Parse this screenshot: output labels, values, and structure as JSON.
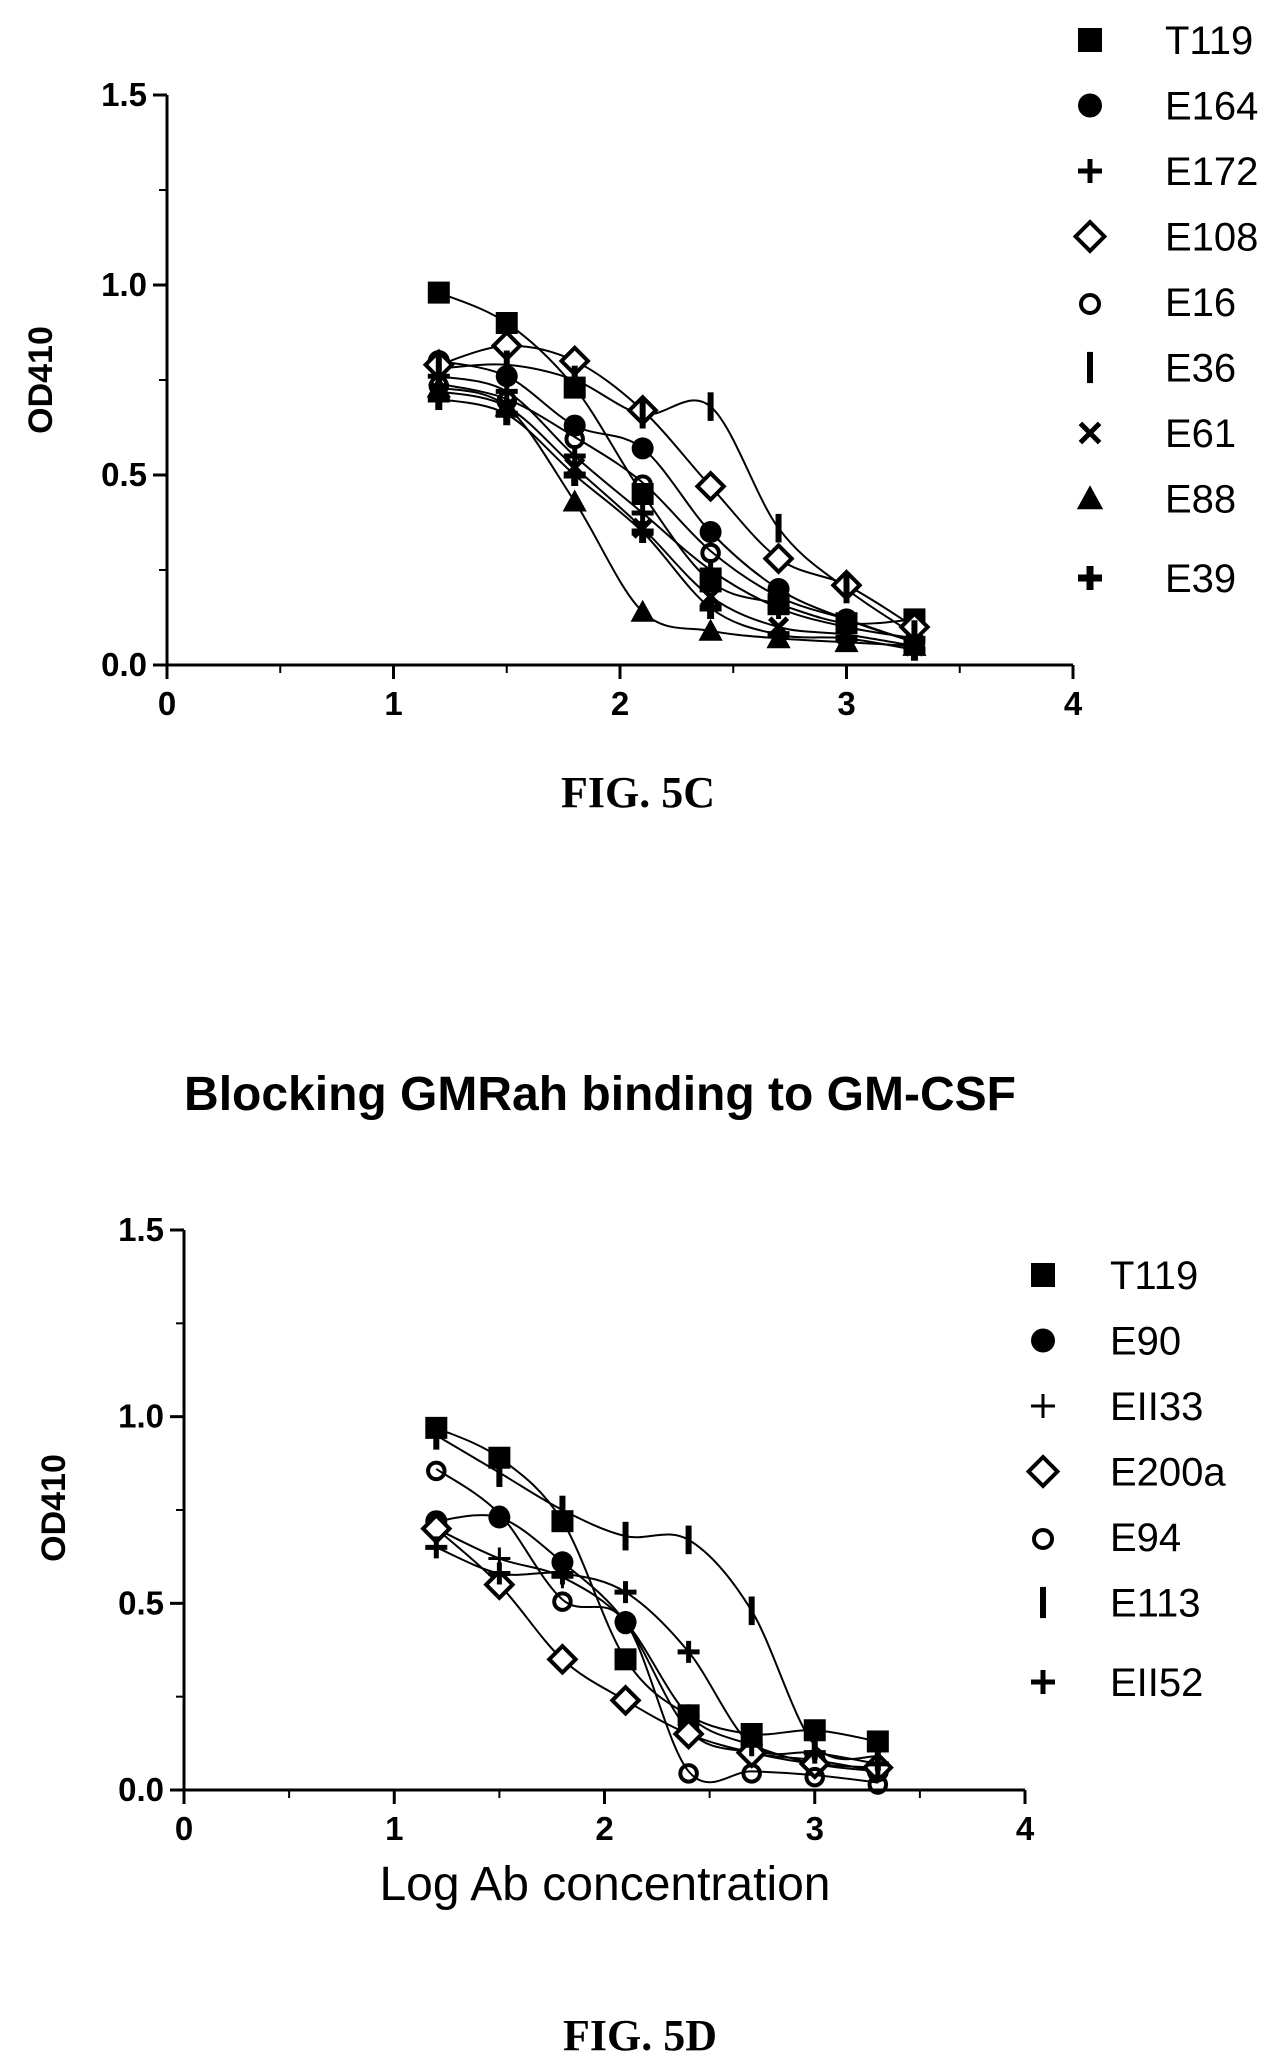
{
  "chart_data": [
    {
      "type": "scatter",
      "caption": "FIG. 5C",
      "title": "",
      "xlabel": "",
      "ylabel": "OD410",
      "xlim": [
        0,
        4
      ],
      "ylim": [
        0,
        1.5
      ],
      "x_ticks": [
        "0",
        "1",
        "2",
        "3",
        "4"
      ],
      "y_ticks": [
        "0.0",
        "0.5",
        "1.0",
        "1.5"
      ],
      "fitted_curves": true,
      "legend_position": "right",
      "series": [
        {
          "name": "T119",
          "marker": "square",
          "x": [
            1.2,
            1.5,
            1.8,
            2.1,
            2.4,
            2.7,
            3.0,
            3.3
          ],
          "y": [
            0.98,
            0.9,
            0.73,
            0.45,
            0.22,
            0.16,
            0.11,
            0.12
          ]
        },
        {
          "name": "E164",
          "marker": "circle",
          "x": [
            1.2,
            1.5,
            1.8,
            2.1,
            2.4,
            2.7,
            3.0,
            3.3
          ],
          "y": [
            0.8,
            0.76,
            0.63,
            0.57,
            0.35,
            0.2,
            0.12,
            0.06
          ]
        },
        {
          "name": "E172",
          "marker": "plus",
          "x": [
            1.2,
            1.5,
            1.8,
            2.1,
            2.4,
            2.7,
            3.0,
            3.3
          ],
          "y": [
            0.76,
            0.72,
            0.55,
            0.4,
            0.25,
            0.15,
            0.1,
            0.07
          ]
        },
        {
          "name": "E108",
          "marker": "diamond",
          "x": [
            1.2,
            1.5,
            1.8,
            2.1,
            2.4,
            2.7,
            3.0,
            3.3
          ],
          "y": [
            0.79,
            0.84,
            0.8,
            0.67,
            0.47,
            0.28,
            0.21,
            0.1
          ]
        },
        {
          "name": "E16",
          "marker": "circle-open",
          "x": [
            1.2,
            1.5,
            1.8,
            2.1,
            2.4,
            2.7,
            3.0,
            3.3
          ],
          "y": [
            0.74,
            0.7,
            0.6,
            0.48,
            0.3,
            0.18,
            0.12,
            0.06
          ]
        },
        {
          "name": "E36",
          "marker": "bar",
          "x": [
            1.2,
            1.5,
            1.8,
            2.1,
            2.4,
            2.7,
            3.0,
            3.3
          ],
          "y": [
            0.78,
            0.79,
            0.75,
            0.66,
            0.68,
            0.36,
            0.2,
            0.08
          ]
        },
        {
          "name": "E61",
          "marker": "cross",
          "x": [
            1.2,
            1.5,
            1.8,
            2.1,
            2.4,
            2.7,
            3.0,
            3.3
          ],
          "y": [
            0.72,
            0.68,
            0.52,
            0.36,
            0.18,
            0.1,
            0.08,
            0.05
          ]
        },
        {
          "name": "E88",
          "marker": "triangle",
          "x": [
            1.2,
            1.5,
            1.8,
            2.1,
            2.4,
            2.7,
            3.0,
            3.3
          ],
          "y": [
            0.73,
            0.68,
            0.43,
            0.14,
            0.09,
            0.07,
            0.06,
            0.05
          ]
        },
        {
          "name": "E39",
          "marker": "plus-bold",
          "x": [
            1.2,
            1.5,
            1.8,
            2.1,
            2.4,
            2.7,
            3.0,
            3.3
          ],
          "y": [
            0.7,
            0.66,
            0.5,
            0.35,
            0.15,
            0.08,
            0.07,
            0.04
          ]
        }
      ]
    },
    {
      "type": "scatter",
      "caption": "FIG. 5D",
      "title": "Blocking GMRah binding to GM-CSF",
      "xlabel": "Log Ab concentration",
      "ylabel": "OD410",
      "xlim": [
        0,
        4
      ],
      "ylim": [
        0,
        1.5
      ],
      "x_ticks": [
        "0",
        "1",
        "2",
        "3",
        "4"
      ],
      "y_ticks": [
        "0.0",
        "0.5",
        "1.0",
        "1.5"
      ],
      "fitted_curves": true,
      "legend_position": "right",
      "series": [
        {
          "name": "T119",
          "marker": "square",
          "x": [
            1.2,
            1.5,
            1.8,
            2.1,
            2.4,
            2.7,
            3.0,
            3.3
          ],
          "y": [
            0.97,
            0.89,
            0.72,
            0.35,
            0.2,
            0.15,
            0.16,
            0.13
          ]
        },
        {
          "name": "E90",
          "marker": "circle",
          "x": [
            1.2,
            1.5,
            1.8,
            2.1,
            2.4,
            2.7,
            3.0,
            3.3
          ],
          "y": [
            0.72,
            0.73,
            0.61,
            0.45,
            0.16,
            0.1,
            0.08,
            0.05
          ]
        },
        {
          "name": "EII33",
          "marker": "plus-thin",
          "x": [
            1.2,
            1.5,
            1.8,
            2.1,
            2.4,
            2.7,
            3.0,
            3.3
          ],
          "y": [
            0.7,
            0.62,
            0.57,
            0.45,
            0.2,
            0.12,
            0.07,
            0.05
          ]
        },
        {
          "name": "E200a",
          "marker": "diamond",
          "x": [
            1.2,
            1.5,
            1.8,
            2.1,
            2.4,
            2.7,
            3.0,
            3.3
          ],
          "y": [
            0.7,
            0.55,
            0.35,
            0.24,
            0.15,
            0.1,
            0.07,
            0.06
          ]
        },
        {
          "name": "E94",
          "marker": "circle-open",
          "x": [
            1.2,
            1.5,
            1.8,
            2.1,
            2.4,
            2.7,
            3.0,
            3.3
          ],
          "y": [
            0.86,
            0.74,
            0.51,
            0.45,
            0.05,
            0.05,
            0.04,
            0.02
          ]
        },
        {
          "name": "E113",
          "marker": "bar",
          "x": [
            1.2,
            1.5,
            1.8,
            2.1,
            2.4,
            2.7,
            3.0,
            3.3
          ],
          "y": [
            0.95,
            0.85,
            0.75,
            0.68,
            0.67,
            0.48,
            0.12,
            0.09
          ]
        },
        {
          "name": "EII52",
          "marker": "plus",
          "x": [
            1.2,
            1.5,
            1.8,
            2.1,
            2.4,
            2.7,
            3.0,
            3.3
          ],
          "y": [
            0.65,
            0.58,
            0.58,
            0.53,
            0.37,
            0.12,
            0.1,
            0.07
          ]
        }
      ]
    }
  ]
}
